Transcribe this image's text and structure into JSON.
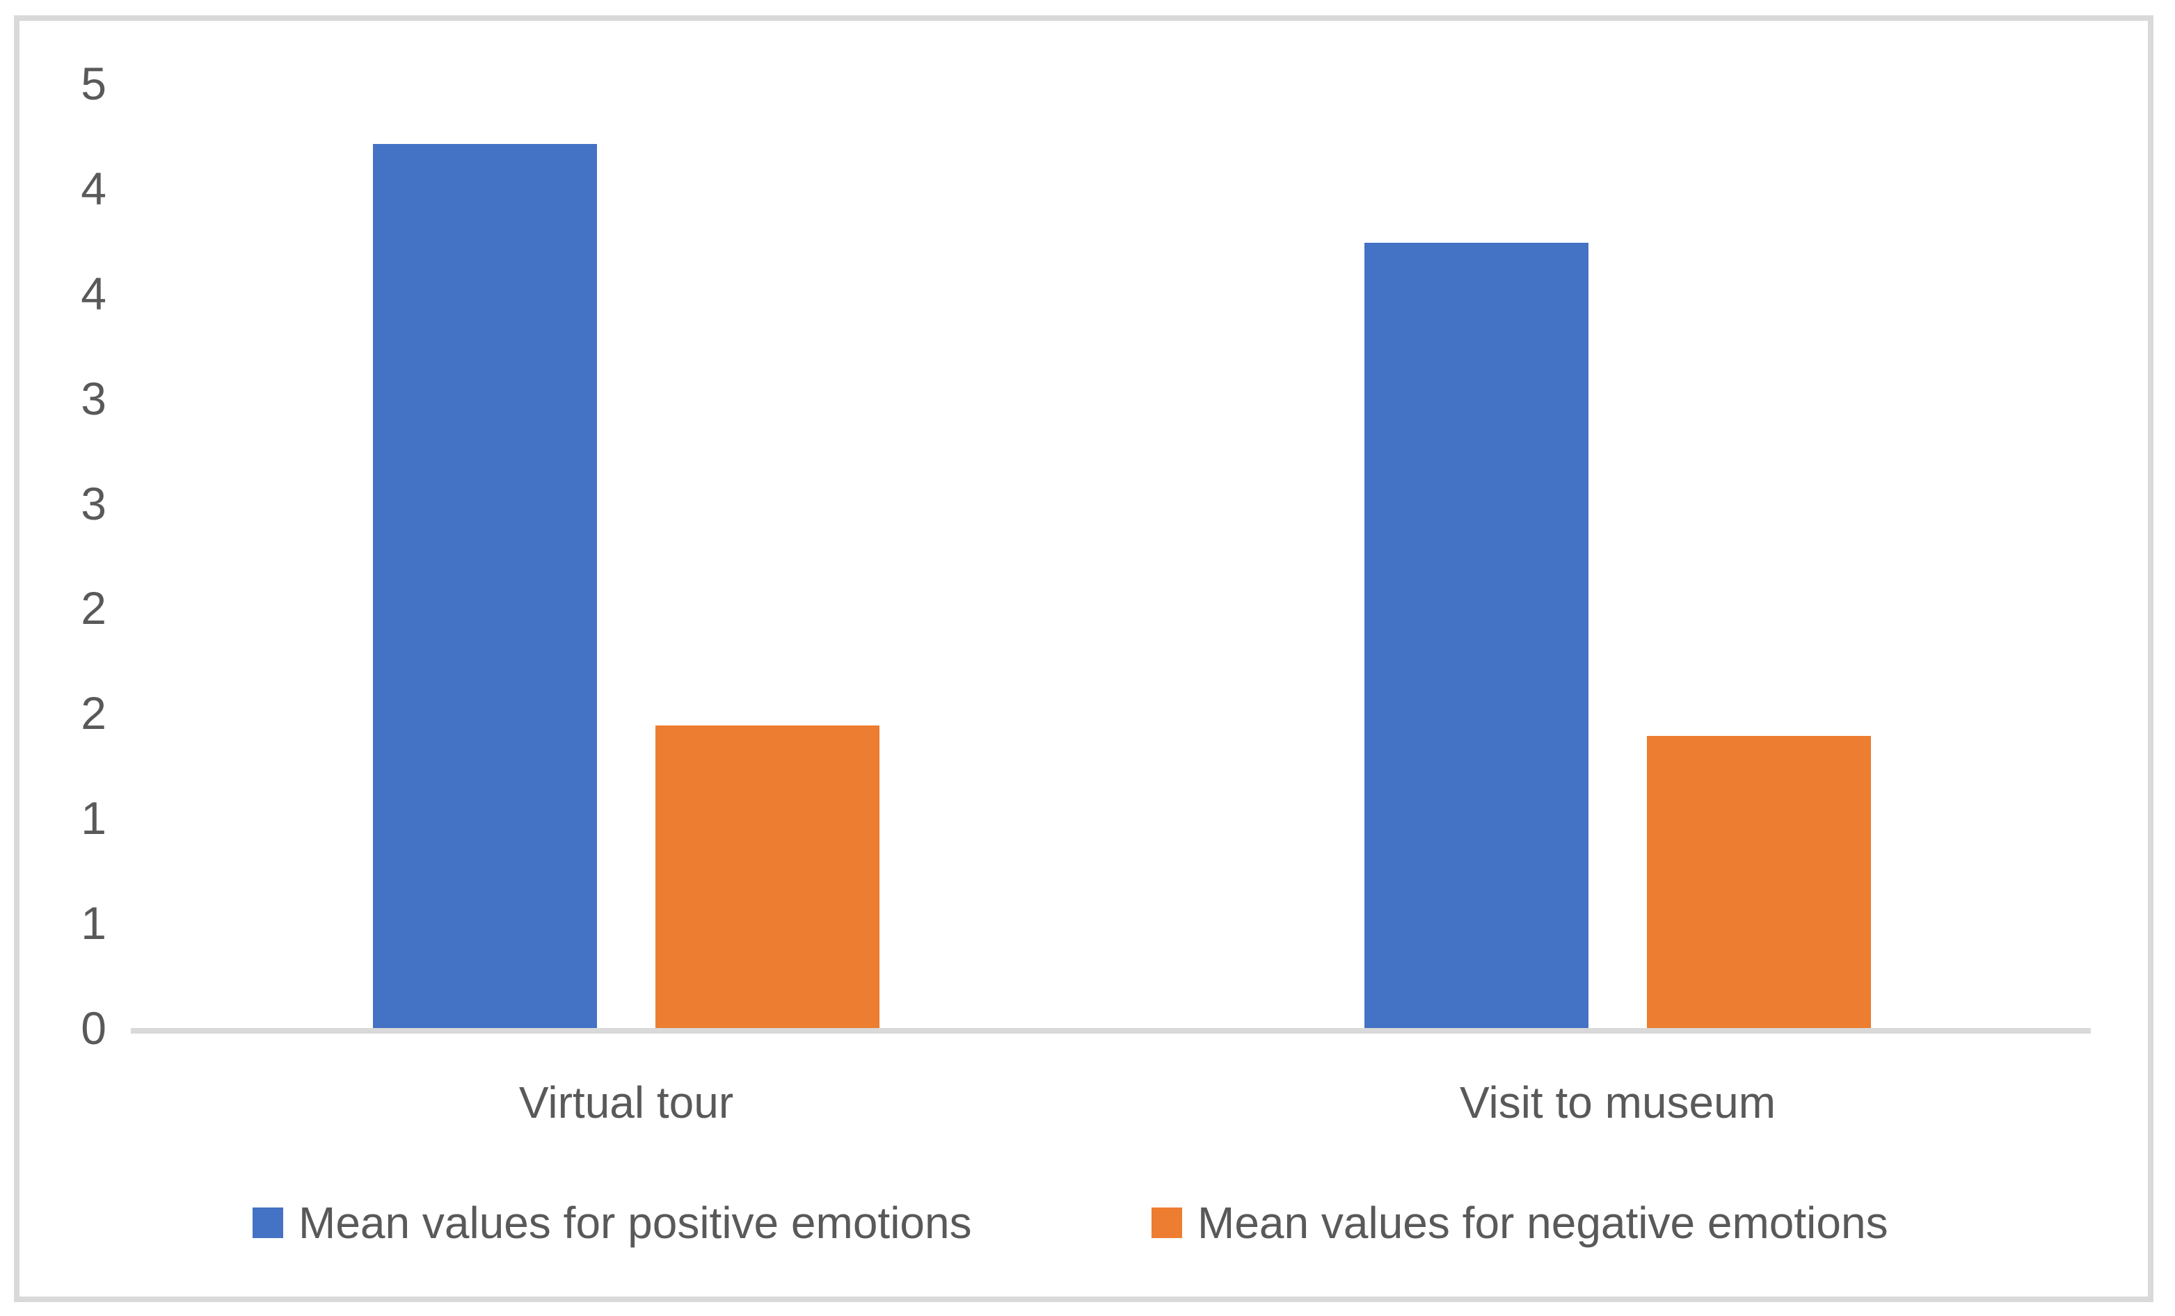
{
  "figure": {
    "background": "#FFFFFF",
    "frame_border_color": "#D9D9D9"
  },
  "chart_data": {
    "type": "bar",
    "title": "",
    "categories": [
      "Virtual tour",
      "Visit to museum"
    ],
    "series": [
      {
        "name": "Mean values for positive emotions",
        "color": "#4472C4",
        "values": [
          4.21,
          3.74
        ]
      },
      {
        "name": "Mean values for negative emotions",
        "color": "#ED7D31",
        "values": [
          1.44,
          1.39
        ]
      }
    ],
    "ylim": [
      0,
      4.5
    ],
    "ytick_step": 0.5,
    "ytick_labels_bottom_to_top": [
      "0",
      "1",
      "1",
      "2",
      "2",
      "3",
      "3",
      "4",
      "4",
      "5"
    ],
    "grid": false,
    "legend_position": "bottom",
    "axis_line_color": "#D9D9D9",
    "text_color": "#595959"
  }
}
